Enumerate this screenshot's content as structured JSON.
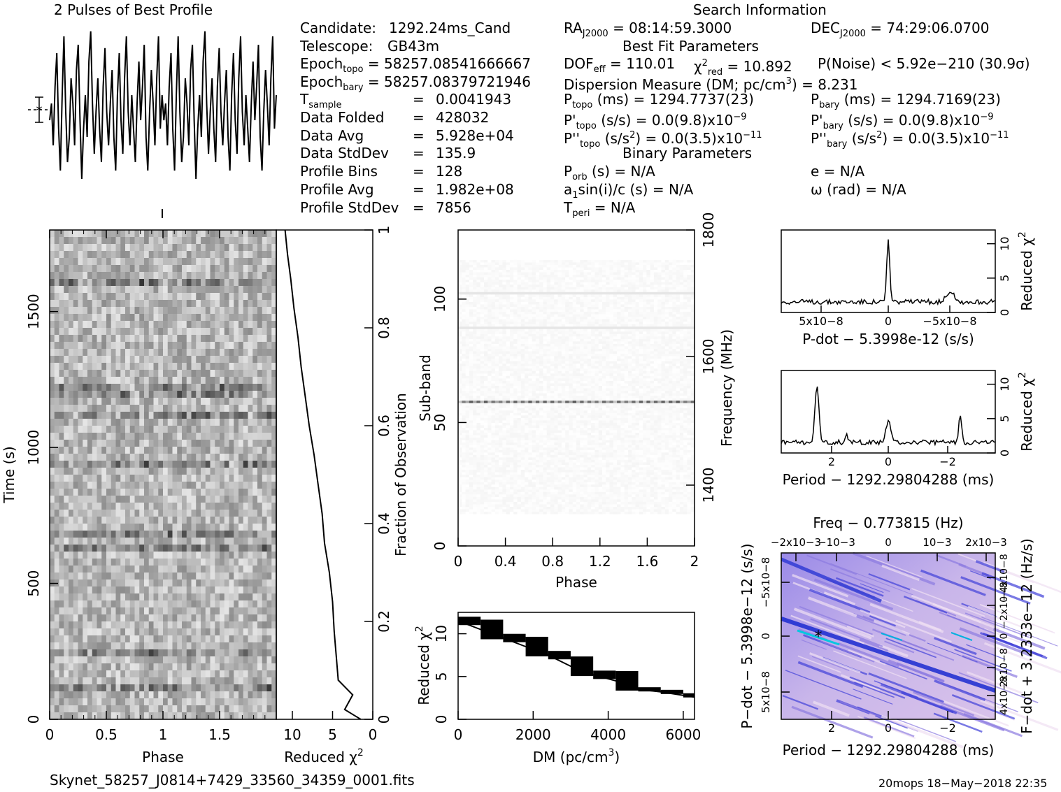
{
  "header": {
    "title": "2 Pulses of Best Profile",
    "search_info": "Search Information",
    "best_fit": "Best Fit Parameters",
    "binary": "Binary Parameters"
  },
  "info": {
    "candidate_label": "Candidate:",
    "candidate_value": "1292.24ms_Cand",
    "telescope_label": "Telescope:",
    "telescope_value": "GB43m",
    "epoch_topo_label": "Epoch",
    "epoch_topo_sub": "topo",
    "epoch_topo_value": "= 58257.08541666667",
    "epoch_bary_label": "Epoch",
    "epoch_bary_sub": "bary",
    "epoch_bary_value": "= 58257.08379721946",
    "tsample_label": "T",
    "tsample_sub": "sample",
    "tsample_value": "0.0041943",
    "data_folded_label": "Data Folded",
    "data_folded_value": "428032",
    "data_avg_label": "Data Avg",
    "data_avg_value": "5.928e+04",
    "data_std_label": "Data StdDev",
    "data_std_value": "135.9",
    "profile_bins_label": "Profile Bins",
    "profile_bins_value": "128",
    "profile_avg_label": "Profile Avg",
    "profile_avg_value": "1.982e+08",
    "profile_std_label": "Profile StdDev",
    "profile_std_value": "7856",
    "eq": "="
  },
  "search": {
    "ra_label": "RA",
    "ra_sub": "J2000",
    "ra_value": "= 08:14:59.3000",
    "dec_label": "DEC",
    "dec_sub": "J2000",
    "dec_value": "= 74:29:06.0700",
    "dof_label": "DOF",
    "dof_sub": "eff",
    "dof_value": "= 110.01",
    "chi_label": "χ",
    "chi_sub": "red",
    "chi_value": "= 10.892",
    "pnoise": "P(Noise) < 5.92e−210   (30.9σ)",
    "dm_text": "Dispersion Measure (DM; pc/cm",
    "dm_value": ") = 8.231",
    "ptopo_label": "P",
    "ptopo_sub": "topo",
    "ptopo_value": "(ms) =  1294.7737(23)",
    "pbary_label": "P",
    "pbary_sub": "bary",
    "pbary_value": "(ms) =  1294.7169(23)",
    "pdtopo_label": "P'",
    "pdtopo_sub": "topo",
    "pdtopo_value": "(s/s) = 0.0(9.8)x10",
    "pdtopo_exp": "−9",
    "pdbary_label": "P'",
    "pdbary_sub": "bary",
    "pdbary_value": "(s/s) = 0.0(9.8)x10",
    "pdbary_exp": "−9",
    "pddtopo_label": "P''",
    "pddtopo_sub": "topo",
    "pddtopo_value": "(s/s",
    "pddtopo_value2": ") = 0.0(3.5)x10",
    "pddtopo_exp": "−11",
    "pddbary_label": "P''",
    "pddbary_sub": "bary",
    "pddbary_value": "(s/s",
    "pddbary_value2": ") = 0.0(3.5)x10",
    "pddbary_exp": "−11",
    "porb_label": "P",
    "porb_sub": "orb",
    "porb_value": "(s) = N/A",
    "e_text": "e = N/A",
    "a1_label": "a",
    "a1_sub": "1",
    "a1_value": "sin(i)/c (s) = N/A",
    "omega_text": "ω (rad) = N/A",
    "tperi_label": "T",
    "tperi_sub": "peri",
    "tperi_value": "= N/A"
  },
  "footer": {
    "filename": "Skynet_58257_J0814+7429_33560_34359_0001.fits",
    "stamp": "20mops 18−May−2018 22:35"
  },
  "colors": {
    "ink": "#000000",
    "bg": "#ffffff",
    "pd_fill": "#6b6be0",
    "pd_light": "#e0c8e8",
    "pd_dark": "#1a2ad0"
  },
  "chart_data": [
    {
      "type": "line",
      "name": "profile",
      "title": "2 Pulses of Best Profile",
      "x_range": [
        0,
        2
      ],
      "values": [
        0.45,
        0.55,
        0.3,
        0.65,
        0.85,
        0.4,
        0.15,
        0.6,
        0.95,
        0.5,
        0.2,
        0.35,
        0.7,
        0.55,
        0.3,
        0.75,
        0.9,
        0.45,
        0.1,
        0.4,
        0.6,
        0.35,
        0.8,
        0.98,
        0.55,
        0.25,
        0.5,
        0.7,
        0.4,
        0.2,
        0.65,
        0.88,
        0.5,
        0.3,
        0.55,
        0.75,
        0.35,
        0.15,
        0.6,
        0.85,
        0.45,
        0.25,
        0.7,
        0.95,
        0.5,
        0.3,
        0.6,
        0.4,
        0.2,
        0.55,
        0.8,
        0.45,
        0.65,
        0.9,
        0.35,
        0.15,
        0.5,
        0.75,
        0.55,
        0.3,
        0.7,
        0.95,
        0.4,
        0.6,
        0.45,
        0.55,
        0.3,
        0.65,
        0.85,
        0.4,
        0.15,
        0.6,
        0.95,
        0.5,
        0.2,
        0.35,
        0.7,
        0.55,
        0.3,
        0.75,
        0.9,
        0.45,
        0.1,
        0.4,
        0.6,
        0.35,
        0.8,
        0.98,
        0.55,
        0.25,
        0.5,
        0.7,
        0.4,
        0.2,
        0.65,
        0.88,
        0.5,
        0.3,
        0.55,
        0.75,
        0.35,
        0.15,
        0.6,
        0.85,
        0.45,
        0.25,
        0.7,
        0.95,
        0.5,
        0.3,
        0.6,
        0.4,
        0.2,
        0.55,
        0.8,
        0.45,
        0.65,
        0.9,
        0.35,
        0.15,
        0.5,
        0.75,
        0.55,
        0.3,
        0.7,
        0.95,
        0.4,
        0.6
      ]
    },
    {
      "type": "heatmap",
      "name": "time-phase",
      "xlabel": "Phase",
      "ylabel": "Time (s)",
      "x_ticks": [
        "0",
        "0.5",
        "1",
        "1.5"
      ],
      "y_ticks": [
        "0",
        "500",
        "1000",
        "1500"
      ],
      "xlim": [
        0,
        2
      ],
      "ylim": [
        0,
        1800
      ]
    },
    {
      "type": "line",
      "name": "reduced-chi2-vs-time",
      "xlabel": "Reduced χ2",
      "ylabel": "Fraction of Observation",
      "x_ticks": [
        "10",
        "5",
        "0"
      ],
      "y_ticks": [
        "0",
        "0.2",
        "0.4",
        "0.6",
        "0.8",
        "1"
      ],
      "x": [
        1.5,
        3.5,
        2.5,
        4.3,
        4.5,
        4.8,
        5.0,
        5.4,
        6.0,
        6.3,
        6.8,
        7.3,
        7.9,
        8.4,
        8.9,
        9.3,
        9.8,
        10.2,
        10.6,
        10.9
      ],
      "y": [
        0.0,
        0.02,
        0.05,
        0.08,
        0.12,
        0.18,
        0.24,
        0.3,
        0.36,
        0.42,
        0.48,
        0.54,
        0.6,
        0.66,
        0.72,
        0.78,
        0.84,
        0.9,
        0.95,
        1.0
      ],
      "xlim": [
        12,
        0
      ],
      "ylim": [
        0,
        1
      ]
    },
    {
      "type": "heatmap",
      "name": "subband-phase",
      "xlabel": "Phase",
      "ylabel": "Sub-band",
      "y2label": "Frequency (MHz)",
      "x_ticks": [
        "0",
        "0.4",
        "0.8",
        "1.2",
        "1.6",
        "2"
      ],
      "y_ticks": [
        "0",
        "50",
        "100"
      ],
      "y2_ticks": [
        "1400",
        "1600",
        "1800"
      ],
      "xlim": [
        0,
        2
      ],
      "ylim": [
        0,
        128
      ]
    },
    {
      "type": "line",
      "name": "dm-curve",
      "xlabel": "DM (pc/cm3)",
      "ylabel": "Reduced χ2",
      "x_ticks": [
        "0",
        "2000",
        "4000",
        "6000"
      ],
      "y_ticks": [
        "0",
        "5",
        "10"
      ],
      "x": [
        0,
        600,
        1200,
        1800,
        2400,
        3000,
        3600,
        4200,
        4800,
        5400,
        6000,
        6300
      ],
      "y": [
        11.5,
        10.5,
        9.5,
        8.5,
        7.5,
        6.2,
        5.2,
        4.5,
        3.5,
        3.2,
        2.8,
        2.6
      ],
      "xlim": [
        0,
        6300
      ],
      "ylim": [
        0,
        12.5
      ]
    },
    {
      "type": "line",
      "name": "pdot-curve",
      "xlabel": "P-dot − 5.3998e-12 (s/s)",
      "ylabel": "Reduced χ2",
      "x_ticks": [
        "5x10−8",
        "0",
        "−5x10−8"
      ],
      "y_ticks": [
        "0",
        "5",
        "10"
      ],
      "ylim": [
        0,
        12
      ]
    },
    {
      "type": "line",
      "name": "period-curve",
      "xlabel": "Period − 1292.29804288 (ms)",
      "ylabel": "Reduced χ2",
      "x_ticks": [
        "2",
        "0",
        "−2"
      ],
      "y_ticks": [
        "0",
        "5",
        "10"
      ],
      "ylim": [
        0,
        12
      ]
    },
    {
      "type": "heatmap",
      "name": "period-pdot",
      "title": "Freq − 0.773815 (Hz)",
      "xlabel": "Period − 1292.29804288 (ms)",
      "ylabel": "P−dot − 5.3998e−12 (s/s)",
      "y2label": "F−dot + 3.2333e−12 (Hz/s)",
      "x_ticks": [
        "2",
        "0",
        "−2"
      ],
      "top_ticks": [
        "−2x10−3",
        "−10−3",
        "0",
        "10−3",
        "2x10−3"
      ],
      "y_ticks": [
        "−5x10−8",
        "0",
        "5x10−8"
      ],
      "y2_ticks": [
        "4x10−8",
        "2x10−8",
        "0",
        "−2x10−8",
        "−4x10−8"
      ]
    }
  ]
}
